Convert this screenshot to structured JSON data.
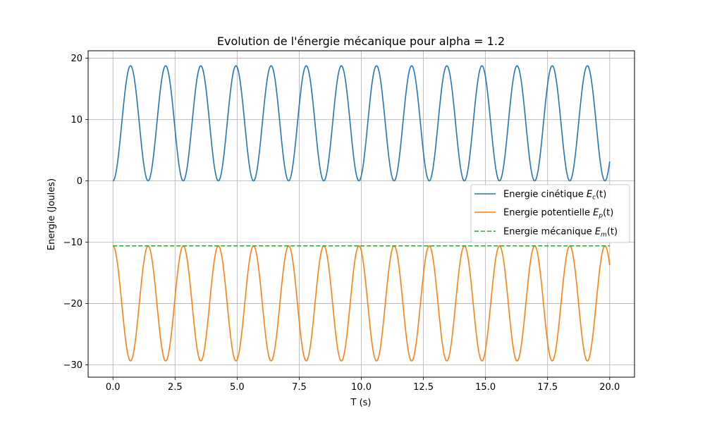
{
  "chart_data": {
    "type": "line",
    "title": "Evolution de l'énergie mécanique pour alpha = 1.2",
    "xlabel": "T (s)",
    "ylabel": "Energie (Joules)",
    "xlim": [
      -1.0,
      21.0
    ],
    "ylim": [
      -32.0,
      21.2
    ],
    "xticks": [
      0.0,
      2.5,
      5.0,
      7.5,
      10.0,
      12.5,
      15.0,
      17.5,
      20.0
    ],
    "xtick_labels": [
      "0.0",
      "2.5",
      "5.0",
      "7.5",
      "10.0",
      "12.5",
      "15.0",
      "17.5",
      "20.0"
    ],
    "yticks": [
      20,
      10,
      0,
      -10,
      -20,
      -30
    ],
    "ytick_labels": [
      "20",
      "10",
      "0",
      "−10",
      "−20",
      "−30"
    ],
    "grid": true,
    "legend_position": "right",
    "model": {
      "t_range": [
        0,
        20
      ],
      "period": 1.415,
      "amplitude": 18.75,
      "em_level": -10.6
    },
    "series": [
      {
        "name_prefix": "Energie cinétique ",
        "name_base": "E",
        "name_sub": "c",
        "name_suffix": "(t)",
        "color": "#1f77b4",
        "style": "solid"
      },
      {
        "name_prefix": "Energie potentielle ",
        "name_base": "E",
        "name_sub": "p",
        "name_suffix": "(t)",
        "color": "#ff7f0e",
        "style": "solid"
      },
      {
        "name_prefix": "Energie mécanique ",
        "name_base": "E",
        "name_sub": "m",
        "name_suffix": "(t)",
        "color": "#2ca02c",
        "style": "dashed"
      }
    ]
  }
}
